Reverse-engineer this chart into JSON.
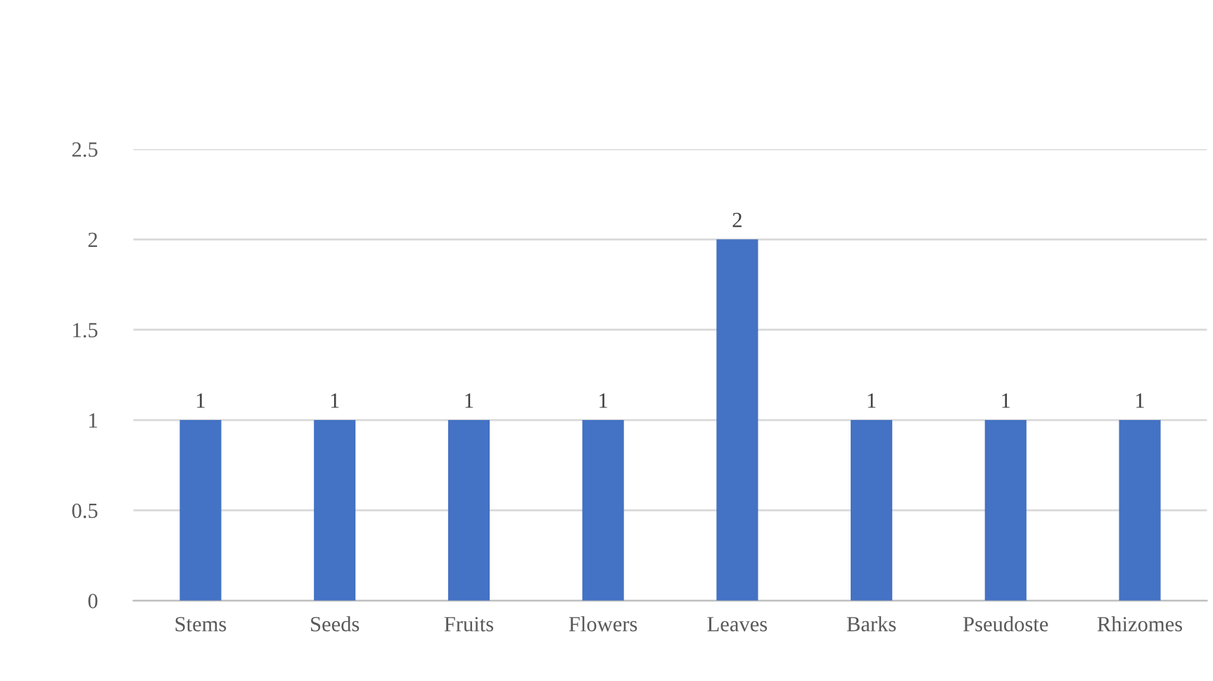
{
  "chart_data": {
    "type": "bar",
    "categories": [
      "Stems",
      "Seeds",
      "Fruits",
      "Flowers",
      "Leaves",
      "Barks",
      "Pseudoste",
      "Rhizomes"
    ],
    "values": [
      1,
      1,
      1,
      1,
      2,
      1,
      1,
      1
    ],
    "color": "#4472c4",
    "ylim": [
      0,
      2.5
    ],
    "yticks": [
      0,
      0.5,
      1,
      1.5,
      2,
      2.5
    ],
    "grid": "y",
    "data_labels": true
  }
}
